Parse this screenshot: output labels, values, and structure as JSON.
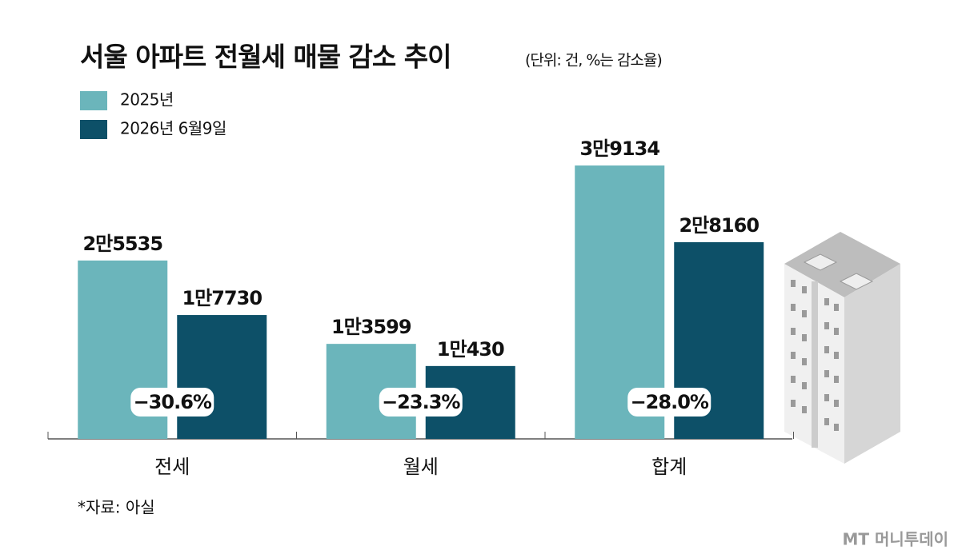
{
  "chart_data": {
    "type": "bar",
    "title": "서울 아파트 전월세 매물 감소 추이",
    "subtitle": "(단위: 건, %는 감소율)",
    "categories": [
      "전세",
      "월세",
      "합계"
    ],
    "series": [
      {
        "name": "2025년",
        "color": "#6bb5bb",
        "values": [
          25535,
          13599,
          39134
        ],
        "value_labels": [
          "2만5535",
          "1만3599",
          "3만9134"
        ]
      },
      {
        "name": "2026년 6월9일",
        "color": "#0d5068",
        "values": [
          17730,
          10430,
          28160
        ],
        "value_labels": [
          "1만7730",
          "1만430",
          "2만8160"
        ]
      }
    ],
    "annotations": [
      "−30.6%",
      "−23.3%",
      "−28.0%"
    ],
    "source": "*자료: 아실",
    "watermark": "MT 머니투데이"
  }
}
